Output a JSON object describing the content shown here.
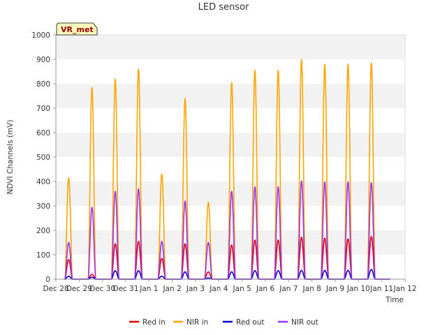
{
  "chart_data": {
    "type": "line",
    "title": "LED sensor",
    "xlabel": "Time",
    "ylabel": "NDVI Channels (mV)",
    "ylim": [
      0,
      1000
    ],
    "yticks": [
      0,
      100,
      200,
      300,
      400,
      500,
      600,
      700,
      800,
      900,
      1000
    ],
    "xlim": [
      0,
      15
    ],
    "xticks": [
      {
        "pos": 0,
        "label": "Dec 28"
      },
      {
        "pos": 1,
        "label": "Dec 29"
      },
      {
        "pos": 2,
        "label": "Dec 30"
      },
      {
        "pos": 3,
        "label": "Dec 31"
      },
      {
        "pos": 4,
        "label": "Jan 1"
      },
      {
        "pos": 5,
        "label": "Jan 2"
      },
      {
        "pos": 6,
        "label": "Jan 3"
      },
      {
        "pos": 7,
        "label": "Jan 4"
      },
      {
        "pos": 8,
        "label": "Jan 5"
      },
      {
        "pos": 9,
        "label": "Jan 6"
      },
      {
        "pos": 10,
        "label": "Jan 7"
      },
      {
        "pos": 11,
        "label": "Jan 8"
      },
      {
        "pos": 12,
        "label": "Jan 9"
      },
      {
        "pos": 13,
        "label": "Jan 10"
      },
      {
        "pos": 14,
        "label": "Jan 11"
      },
      {
        "pos": 15,
        "label": "Jan 12"
      }
    ],
    "grid": "horizontal bands",
    "badge": "VR_met",
    "day_centers": [
      0.55,
      1.55,
      2.55,
      3.55,
      4.55,
      5.55,
      6.55,
      7.55,
      8.55,
      9.55,
      10.55,
      11.55,
      12.55,
      13.55
    ],
    "peak_width_days": 0.32,
    "series": [
      {
        "name": "Red in",
        "color": "#dd0000",
        "peaks": [
          80,
          20,
          145,
          155,
          85,
          145,
          30,
          140,
          160,
          160,
          172,
          168,
          165,
          175
        ]
      },
      {
        "name": "NIR in",
        "color": "#ffa500",
        "peaks": [
          415,
          785,
          820,
          860,
          430,
          740,
          315,
          805,
          855,
          855,
          900,
          880,
          880,
          885
        ]
      },
      {
        "name": "Red out",
        "color": "#0000cc",
        "peaks": [
          12,
          8,
          35,
          35,
          12,
          30,
          5,
          30,
          35,
          35,
          36,
          36,
          36,
          40
        ]
      },
      {
        "name": "NIR out",
        "color": "#9933ff",
        "peaks": [
          150,
          295,
          360,
          370,
          155,
          320,
          150,
          360,
          378,
          378,
          402,
          398,
          398,
          395
        ]
      }
    ]
  }
}
